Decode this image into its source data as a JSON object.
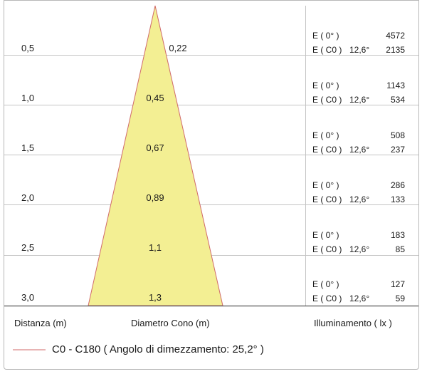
{
  "rows": [
    {
      "distance": "0,5",
      "diameter": "0,22",
      "e0_label": "E ( 0° )",
      "e0_value": "4572",
      "ec0_label": "E ( C0 )",
      "angle": "12,6°",
      "ec0_value": "2135"
    },
    {
      "distance": "1,0",
      "diameter": "0,45",
      "e0_label": "E ( 0° )",
      "e0_value": "1143",
      "ec0_label": "E ( C0 )",
      "angle": "12,6°",
      "ec0_value": "534"
    },
    {
      "distance": "1,5",
      "diameter": "0,67",
      "e0_label": "E ( 0° )",
      "e0_value": "508",
      "ec0_label": "E ( C0 )",
      "angle": "12,6°",
      "ec0_value": "237"
    },
    {
      "distance": "2,0",
      "diameter": "0,89",
      "e0_label": "E ( 0° )",
      "e0_value": "286",
      "ec0_label": "E ( C0 )",
      "angle": "12,6°",
      "ec0_value": "133"
    },
    {
      "distance": "2,5",
      "diameter": "1,1",
      "e0_label": "E ( 0° )",
      "e0_value": "183",
      "ec0_label": "E ( C0 )",
      "angle": "12,6°",
      "ec0_value": "85"
    },
    {
      "distance": "3,0",
      "diameter": "1,3",
      "e0_label": "E ( 0° )",
      "e0_value": "127",
      "ec0_label": "E ( C0 )",
      "angle": "12,6°",
      "ec0_value": "59"
    }
  ],
  "headers": {
    "distance": "Distanza (m)",
    "diameter": "Diametro Cono (m)",
    "illuminance": "Illuminamento ( lx )"
  },
  "legend": {
    "text": "C0 - C180  ( Angolo di dimezzamento: 25,2° )",
    "line_color": "#d06a6a"
  },
  "colors": {
    "cone_fill": "#f3ef93",
    "cone_stroke": "#d06a6a",
    "grid": "#c4c4c4"
  }
}
